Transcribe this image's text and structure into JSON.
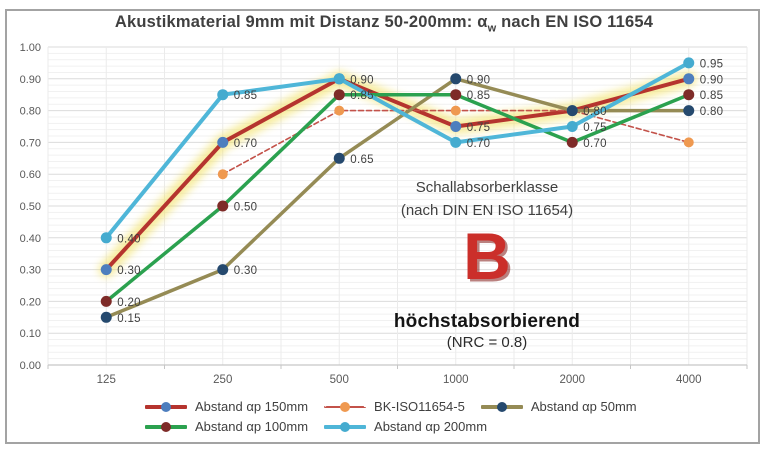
{
  "title": {
    "part1": "Akustikmaterial 9mm mit Distanz 50-200mm: α",
    "sub": "w",
    "part2": " nach EN ISO 11654"
  },
  "annotations": {
    "klasse_line1": "Schallabsorberklasse",
    "klasse_line2": "(nach DIN EN ISO 11654)",
    "class_letter": "B",
    "class_desc": "höchstabsorbierend",
    "nrc": "(NRC = 0.8)"
  },
  "chart_data": {
    "type": "line",
    "title": "Akustikmaterial 9mm mit Distanz 50-200mm: αw nach EN ISO 11654",
    "categories": [
      "125",
      "250",
      "500",
      "1000",
      "2000",
      "4000"
    ],
    "xlabel": "",
    "ylabel": "",
    "ylim": [
      0.0,
      1.0
    ],
    "y_major_step": 0.1,
    "y_minor_step": 0.02,
    "y_tick_labels": [
      "0.00",
      "0.10",
      "0.20",
      "0.30",
      "0.40",
      "0.50",
      "0.60",
      "0.70",
      "0.80",
      "0.90",
      "1.00"
    ],
    "grid": true,
    "legend_position": "bottom",
    "legend_rows": [
      [
        0,
        1,
        2
      ],
      [
        3,
        4
      ]
    ],
    "highlight_color": "#F1DF56",
    "series": [
      {
        "name": "Abstand αp 150mm",
        "color": "#B5342E",
        "dot_color": "#4D7EBE",
        "width": 4,
        "dash": null,
        "dot_r": 5.5,
        "highlight": true,
        "values": [
          0.3,
          0.7,
          0.9,
          0.75,
          0.8,
          0.9
        ],
        "labels": [
          "0.30",
          "0.70",
          null,
          "0.75",
          null,
          "0.90"
        ]
      },
      {
        "name": "BK-ISO11654-5",
        "color": "#C3524A",
        "dot_color": "#EF9950",
        "width": 1.6,
        "dash": "5 3",
        "dot_r": 5,
        "highlight": false,
        "values": [
          null,
          0.6,
          0.8,
          0.8,
          0.8,
          0.7
        ],
        "labels": [
          null,
          null,
          null,
          null,
          null,
          null
        ]
      },
      {
        "name": "Abstand  αp 50mm",
        "color": "#958B55",
        "dot_color": "#25496E",
        "width": 3.5,
        "dash": null,
        "dot_r": 5.5,
        "highlight": false,
        "values": [
          0.15,
          0.3,
          0.65,
          0.9,
          0.8,
          0.8
        ],
        "labels": [
          "0.15",
          "0.30",
          "0.65",
          "0.90",
          "0.80",
          "0.80"
        ]
      },
      {
        "name": "Abstand  αp 100mm",
        "color": "#2BA14F",
        "dot_color": "#7E2B28",
        "width": 3.5,
        "dash": null,
        "dot_r": 5.5,
        "highlight": false,
        "values": [
          0.2,
          0.5,
          0.85,
          0.85,
          0.7,
          0.85
        ],
        "labels": [
          "0.20",
          "0.50",
          "0.85",
          "0.85",
          "0.70",
          "0.85"
        ]
      },
      {
        "name": "Abstand αp 200mm",
        "color": "#4FB6D8",
        "dot_color": "#45ABCF",
        "width": 4,
        "dash": null,
        "dot_r": 5.5,
        "highlight": false,
        "values": [
          0.4,
          0.85,
          0.9,
          0.7,
          0.75,
          0.95
        ],
        "labels": [
          "0.40",
          "0.85",
          "0.90",
          "0.70",
          "0.75",
          "0.95"
        ]
      }
    ]
  },
  "style_colors": {
    "grid_major": "#DBDBDB",
    "grid_minor": "#F1F1F1",
    "grid_vertical": "#EBEBEB",
    "axis_line": "#C6C6C6",
    "axis_text": "#595959",
    "data_label": "#404040",
    "frame_border": "#A3A3A3"
  }
}
